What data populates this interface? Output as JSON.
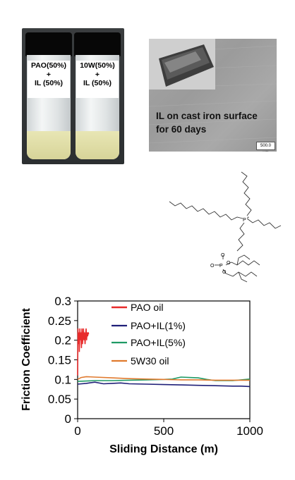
{
  "vials": {
    "left": {
      "line1": "PAO(50%)",
      "line2": "+",
      "line3": "IL (50%)"
    },
    "right": {
      "line1": "10W(50%)",
      "line2": "+",
      "line3": "IL (50%)"
    }
  },
  "cast_iron": {
    "line1": "IL on cast iron surface",
    "line2": "for 60 days",
    "scale": "500.0 µm"
  },
  "colors": {
    "pao_oil": "#e82a2a",
    "pao_il1": "#1f1f78",
    "pao_il5": "#1e9a64",
    "w530": "#e07a2e"
  },
  "chart_data": {
    "type": "line",
    "xlabel": "Sliding Distance (m)",
    "ylabel": "Friction Coefficient",
    "xlim": [
      0,
      1000
    ],
    "ylim": [
      0,
      0.3
    ],
    "xticks": [
      "0",
      "500",
      "1000"
    ],
    "yticks": [
      "0",
      "0.05",
      "0.1",
      "0.15",
      "0.2",
      "0.25",
      "0.3"
    ],
    "legend_position": "top-right",
    "series": [
      {
        "name": "PAO oil",
        "color": "#e82a2a",
        "x": [
          0,
          2,
          4,
          6,
          8,
          10,
          13,
          16,
          19,
          22,
          25,
          28,
          31,
          34,
          37,
          40,
          43,
          46,
          49,
          52,
          55,
          58,
          61,
          64
        ],
        "y": [
          0.11,
          0.23,
          0.19,
          0.21,
          0.22,
          0.17,
          0.23,
          0.2,
          0.22,
          0.18,
          0.23,
          0.19,
          0.21,
          0.23,
          0.2,
          0.22,
          0.19,
          0.21,
          0.23,
          0.2,
          0.22,
          0.21,
          0.22,
          0.215
        ]
      },
      {
        "name": "PAO+IL(1%)",
        "color": "#1f1f78",
        "x": [
          0,
          50,
          100,
          150,
          200,
          250,
          300,
          400,
          500,
          600,
          700,
          800,
          900,
          950,
          1000
        ],
        "y": [
          0.088,
          0.09,
          0.093,
          0.089,
          0.09,
          0.091,
          0.089,
          0.088,
          0.087,
          0.086,
          0.085,
          0.084,
          0.083,
          0.083,
          0.082
        ]
      },
      {
        "name": "PAO+IL(5%)",
        "color": "#1e9a64",
        "x": [
          0,
          50,
          100,
          200,
          300,
          400,
          500,
          550,
          600,
          650,
          700,
          750,
          800,
          900,
          950,
          1000
        ],
        "y": [
          0.095,
          0.096,
          0.097,
          0.097,
          0.098,
          0.099,
          0.1,
          0.101,
          0.106,
          0.105,
          0.104,
          0.1,
          0.097,
          0.097,
          0.099,
          0.101
        ]
      },
      {
        "name": "5W30 oil",
        "color": "#e07a2e",
        "x": [
          0,
          20,
          50,
          100,
          200,
          300,
          400,
          500,
          600,
          700,
          800,
          900,
          1000
        ],
        "y": [
          0.1,
          0.105,
          0.107,
          0.106,
          0.104,
          0.102,
          0.101,
          0.1,
          0.099,
          0.099,
          0.098,
          0.098,
          0.098
        ]
      }
    ]
  }
}
